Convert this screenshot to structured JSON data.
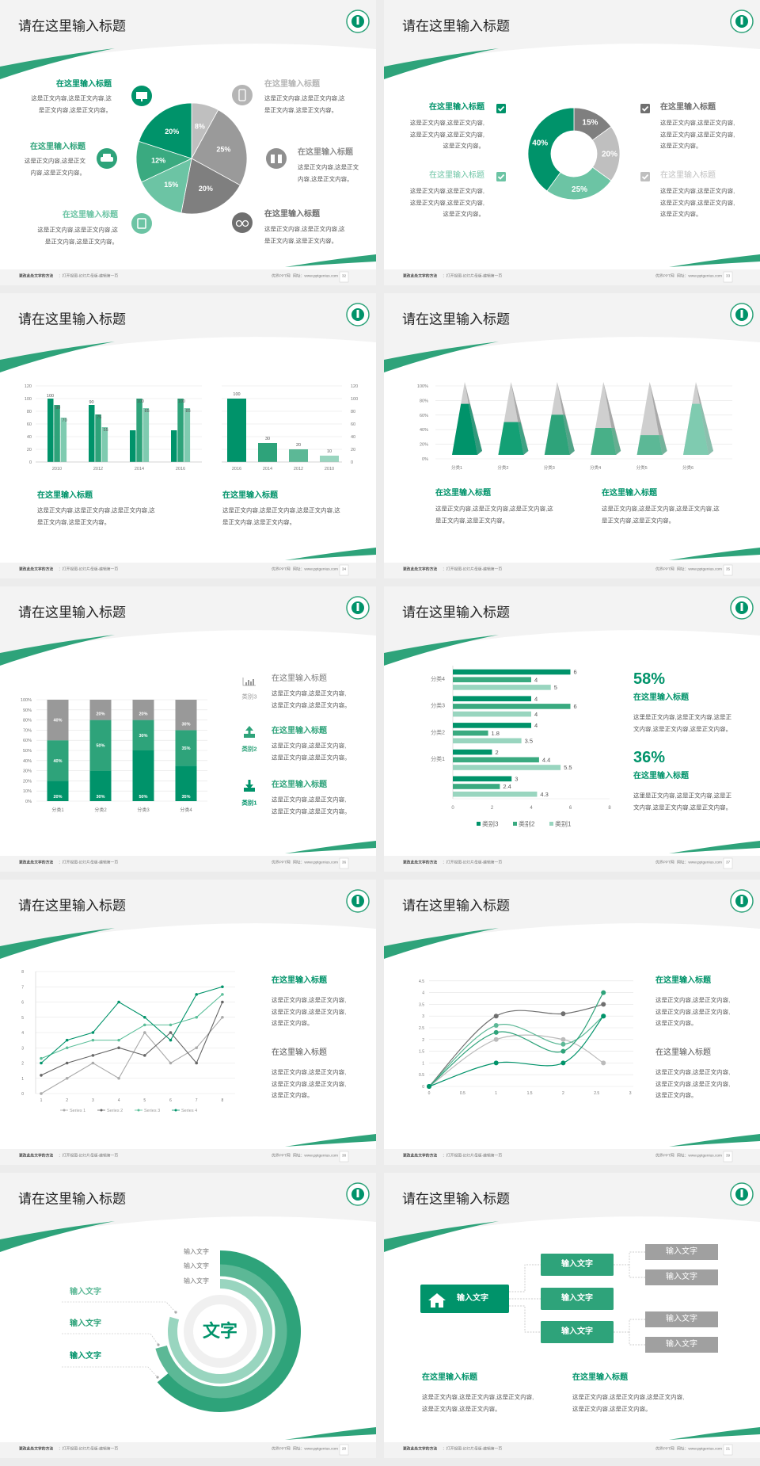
{
  "colors": {
    "green": "#00936a",
    "green2": "#2ea37a",
    "green3": "#5cb896",
    "green4": "#99d5bf",
    "gray": "#999999",
    "darkgray": "#6f6f6f",
    "lightgray": "#bfbfbf"
  },
  "footer": {
    "left_bold": "更改此处文字的方法",
    "left": "：打开视图-幻灯片母版-编辑第一页",
    "brand": "优界PPT网",
    "site": "网址：www.pptgenius.com"
  },
  "slides": [
    {
      "title": "请在这里输入标题",
      "page": "32",
      "items": [
        {
          "title": "在这里输入标题",
          "body": [
            "这是正文内容,这是正文内容,这",
            "是正文内容,这是正文内容。"
          ],
          "icon": "monitor-icon",
          "color": "#00936a"
        },
        {
          "title": "在这里输入标题",
          "body": [
            "这是正文内容,这是正文",
            "内容,这是正文内容。"
          ],
          "icon": "car-icon",
          "color": "#2ea37a"
        },
        {
          "title": "在这里输入标题",
          "body": [
            "这是正文内容,这是正文内容,这",
            "是正文内容,这是正文内容。"
          ],
          "icon": "book-icon",
          "color": "#6cc4a4"
        },
        {
          "title": "在这里输入标题",
          "body": [
            "这是正文内容,这是正文内容,这",
            "是正文内容,这是正文内容。"
          ],
          "icon": "phone-icon",
          "color": "#b5b5b5"
        },
        {
          "title": "在这里输入标题",
          "body": [
            "这是正文内容,这是正文",
            "内容,这是正文内容。"
          ],
          "icon": "binoculars-icon",
          "color": "#8f8f8f"
        },
        {
          "title": "在这里输入标题",
          "body": [
            "这是正文内容,这是正文内容,这",
            "是正文内容,这是正文内容。"
          ],
          "icon": "bicycle-icon",
          "color": "#6f6f6f"
        }
      ]
    },
    {
      "title": "请在这里输入标题",
      "page": "33",
      "items": [
        {
          "title": "在这里输入标题",
          "body": [
            "这是正文内容,这是正文内容,",
            "这是正文内容,这是正文内容,",
            "这是正文内容。"
          ],
          "color": "#00936a"
        },
        {
          "title": "在这里输入标题",
          "body": [
            "这是正文内容,这是正文内容,",
            "这是正文内容,这是正文内容,",
            "这是正文内容。"
          ],
          "color": "#6cc4a4"
        },
        {
          "title": "在这里输入标题",
          "body": [
            "这是正文内容,这是正文内容,",
            "这是正文内容,这是正文内容,",
            "这是正文内容。"
          ],
          "color": "#6f6f6f"
        },
        {
          "title": "在这里输入标题",
          "body": [
            "这是正文内容,这是正文内容,",
            "这是正文内容,这是正文内容,",
            "这是正文内容。"
          ],
          "color": "#bfbfbf"
        }
      ]
    },
    {
      "title": "请在这里输入标题",
      "page": "34",
      "items": [
        {
          "title": "在这里输入标题",
          "body": [
            "这是正文内容,这是正文内容,这是正文内容,这",
            "是正文内容,这是正文内容。"
          ]
        },
        {
          "title": "在这里输入标题",
          "body": [
            "这是正文内容,这是正文内容,这是正文内容,这",
            "是正文内容,这是正文内容。"
          ]
        }
      ]
    },
    {
      "title": "请在这里输入标题",
      "page": "35",
      "items": [
        {
          "title": "在这里输入标题",
          "body": [
            "这是正文内容,这是正文内容,这是正文内容,这",
            "是正文内容,这是正文内容。"
          ]
        },
        {
          "title": "在这里输入标题",
          "body": [
            "这是正文内容,这是正文内容,这是正文内容,这",
            "是正文内容,这是正文内容。"
          ]
        }
      ]
    },
    {
      "title": "请在这里输入标题",
      "page": "36",
      "items": [
        {
          "title": "在这里输入标题",
          "label": "类别3",
          "icon": "bar-chart-icon",
          "color": "#999999",
          "body": [
            "这是正文内容,这是正文内容,",
            "这是正文内容,这是正文内容。"
          ]
        },
        {
          "title": "在这里输入标题",
          "label": "类别2",
          "icon": "upload-icon",
          "color": "#2ea37a",
          "body": [
            "这是正文内容,这是正文内容,",
            "这是正文内容,这是正文内容。"
          ]
        },
        {
          "title": "在这里输入标题",
          "label": "类别1",
          "icon": "download-icon",
          "color": "#00936a",
          "body": [
            "这是正文内容,这是正文内容,",
            "这是正文内容,这是正文内容。"
          ]
        }
      ]
    },
    {
      "title": "请在这里输入标题",
      "page": "37",
      "items": [
        {
          "value": "58%",
          "title": "在这里输入标题",
          "body": [
            "这里是正文内容,这是正文内容,这是正",
            "文内容,这是正文内容,这是正文内容。"
          ]
        },
        {
          "value": "36%",
          "title": "在这里输入标题",
          "body": [
            "这里是正文内容,这是正文内容,这是正",
            "文内容,这是正文内容,这是正文内容。"
          ]
        }
      ]
    },
    {
      "title": "请在这里输入标题",
      "page": "38",
      "items": [
        {
          "title": "在这里输入标题",
          "color": "#00936a",
          "body": [
            "这是正文内容,这是正文内容,",
            "这是正文内容,这是正文内容,",
            "这是正文内容。"
          ]
        },
        {
          "title": "在这里输入标题",
          "color": "#555555",
          "body": [
            "这是正文内容,这是正文内容,",
            "这是正文内容,这是正文内容,",
            "这是正文内容。"
          ]
        }
      ]
    },
    {
      "title": "请在这里输入标题",
      "page": "39",
      "items": [
        {
          "title": "在这里输入标题",
          "color": "#00936a",
          "body": [
            "这是正文内容,这是正文内容,",
            "这是正文内容,这是正文内容,",
            "这是正文内容。"
          ]
        },
        {
          "title": "在这里输入标题",
          "color": "#555555",
          "body": [
            "这是正文内容,这是正文内容,",
            "这是正文内容,这是正文内容,",
            "这是正文内容。"
          ]
        }
      ]
    },
    {
      "title": "请在这里输入标题",
      "page": "20",
      "center": "文字",
      "ring_labels": [
        "输入文字",
        "输入文字",
        "输入文字"
      ],
      "left_labels": [
        {
          "text": "输入文字",
          "color": "#5cb896"
        },
        {
          "text": "输入文字",
          "color": "#2ea37a"
        },
        {
          "text": "输入文字",
          "color": "#00936a"
        }
      ],
      "rings": [
        {
          "color": "#2ea37a"
        },
        {
          "color": "#5cb896"
        },
        {
          "color": "#99d5bf"
        }
      ]
    },
    {
      "title": "请在这里输入标题",
      "page": "21",
      "root": {
        "text": "输入文字",
        "icon": "home-icon"
      },
      "branches": [
        {
          "text": "输入文字",
          "leaves": [
            "输入文字",
            "输入文字"
          ]
        },
        {
          "text": "输入文字",
          "leaves": []
        },
        {
          "text": "输入文字",
          "leaves": [
            "输入文字",
            "输入文字"
          ]
        }
      ],
      "items": [
        {
          "title": "在这里输入标题",
          "body": [
            "这是正文内容,这是正文内容,这是正文内容,",
            "这是正文内容,这是正文内容。"
          ]
        },
        {
          "title": "在这里输入标题",
          "body": [
            "这是正文内容,这是正文内容,这是正文内容,",
            "这是正文内容,这是正文内容。"
          ]
        }
      ]
    }
  ],
  "chart_data": [
    {
      "type": "pie",
      "labels": [
        "8%",
        "25%",
        "20%",
        "15%",
        "12%",
        "20%"
      ],
      "values": [
        8,
        25,
        20,
        15,
        12,
        20
      ],
      "colors": [
        "#bfbfbf",
        "#9a9a9a",
        "#7f7f7f",
        "#6cc4a4",
        "#3aaa80",
        "#00936a"
      ]
    },
    {
      "type": "pie",
      "donut": true,
      "labels": [
        "15%",
        "20%",
        "25%",
        "40%"
      ],
      "values": [
        15,
        20,
        25,
        40
      ],
      "colors": [
        "#7f7f7f",
        "#bfbfbf",
        "#6cc4a4",
        "#00936a"
      ]
    },
    {
      "type": "bar",
      "categories": [
        "2010",
        "2012",
        "2014",
        "2016"
      ],
      "ylim": [
        0,
        120
      ],
      "yticks": [
        "0",
        "20",
        "40",
        "60",
        "80",
        "100",
        "120"
      ],
      "grid": true,
      "series": [
        {
          "values": [
            100,
            90,
            50,
            50
          ],
          "labels": [
            "100",
            "90",
            null,
            null
          ],
          "color": "#00936a"
        },
        {
          "values": [
            90,
            75,
            100,
            100
          ],
          "labels": [
            "90",
            "75",
            "100",
            "100"
          ],
          "color": "#2ea37a"
        },
        {
          "values": [
            70,
            55,
            85,
            85
          ],
          "labels": [
            "70",
            "55",
            "85",
            "85"
          ],
          "color": "#7fcbb0"
        }
      ]
    },
    {
      "type": "bar",
      "categories": [
        "2016",
        "2014",
        "2012",
        "2010"
      ],
      "values": [
        100,
        30,
        20,
        10
      ],
      "labels": [
        "100",
        "30",
        "20",
        "10"
      ],
      "colors": [
        "#00936a",
        "#2ea37a",
        "#5cb896",
        "#99d5bf"
      ],
      "ylim": [
        0,
        120
      ],
      "yticks": [
        "0",
        "20",
        "40",
        "60",
        "80",
        "100",
        "120"
      ],
      "yaxis": "right",
      "grid": true
    },
    {
      "type": "bar",
      "style": "3d-pyramid",
      "categories": [
        "分类1",
        "分类2",
        "分类3",
        "分类4",
        "分类5",
        "分类6"
      ],
      "values": [
        70,
        45,
        55,
        37,
        27,
        70
      ],
      "ylim": [
        0,
        100
      ],
      "yticks": [
        "0%",
        "20%",
        "40%",
        "60%",
        "80%",
        "100%"
      ],
      "colors": [
        "#00936a",
        "#14a075",
        "#2ea37a",
        "#48b088",
        "#5cb896",
        "#7fcbb0"
      ],
      "grid": true
    },
    {
      "type": "bar",
      "stacked": true,
      "categories": [
        "分类1",
        "分类2",
        "分类3",
        "分类4"
      ],
      "ylim": [
        0,
        100
      ],
      "yticks": [
        "0%",
        "10%",
        "20%",
        "30%",
        "40%",
        "50%",
        "60%",
        "70%",
        "80%",
        "90%",
        "100%"
      ],
      "grid": true,
      "series": [
        {
          "values": [
            20,
            30,
            50,
            35
          ],
          "labels": [
            "20%",
            "30%",
            "50%",
            "35%"
          ],
          "color": "#00936a"
        },
        {
          "values": [
            40,
            50,
            30,
            35
          ],
          "labels": [
            "40%",
            "50%",
            "30%",
            "35%"
          ],
          "color": "#2ea37a"
        },
        {
          "values": [
            40,
            20,
            20,
            30
          ],
          "labels": [
            "40%",
            "20%",
            "20%",
            "30%"
          ],
          "color": "#999999"
        }
      ]
    },
    {
      "type": "bar",
      "orientation": "horizontal",
      "categories": [
        "分类4",
        "分类3",
        "分类2",
        "分类1",
        ""
      ],
      "xlim": [
        0,
        8
      ],
      "xticks": [
        "0",
        "2",
        "4",
        "6",
        "8"
      ],
      "legend": "bottom",
      "series": [
        {
          "name": "类别3",
          "values": [
            6,
            4,
            4,
            2,
            3
          ],
          "labels": [
            "6",
            "4",
            "4",
            "2",
            "3"
          ],
          "color": "#00936a"
        },
        {
          "name": "类别2",
          "values": [
            4,
            6,
            1.8,
            4.4,
            2.4
          ],
          "labels": [
            "4",
            "6",
            "1.8",
            "4.4",
            "2.4"
          ],
          "color": "#3aaa80"
        },
        {
          "name": "类别1",
          "values": [
            5,
            4,
            3.5,
            5.5,
            4.3
          ],
          "labels": [
            "5",
            "4",
            "3.5",
            "5.5",
            "4.3"
          ],
          "color": "#99d5bf"
        }
      ]
    },
    {
      "type": "line",
      "x": [
        1,
        2,
        3,
        4,
        5,
        6,
        7,
        8
      ],
      "xticks": [
        "1",
        "2",
        "3",
        "4",
        "5",
        "6",
        "7",
        "8"
      ],
      "ylim": [
        0,
        8
      ],
      "yticks": [
        "0",
        "1",
        "2",
        "3",
        "4",
        "5",
        "6",
        "7",
        "8"
      ],
      "grid": true,
      "legend": "bottom",
      "series": [
        {
          "name": "Series 1",
          "values": [
            0,
            1,
            2,
            1,
            4,
            2,
            3,
            5
          ],
          "color": "#aaaaaa"
        },
        {
          "name": "Series 2",
          "values": [
            1.2,
            2,
            2.5,
            3,
            2.5,
            4,
            2,
            6
          ],
          "color": "#666666"
        },
        {
          "name": "Series 3",
          "values": [
            2.3,
            3,
            3.5,
            3.5,
            4.5,
            4.5,
            5,
            6.5
          ],
          "color": "#5cbf9a"
        },
        {
          "name": "Series 4",
          "values": [
            2,
            3.5,
            4,
            6,
            5,
            3.5,
            6.5,
            7
          ],
          "color": "#00936a"
        }
      ]
    },
    {
      "type": "scatter",
      "smooth": true,
      "x": [
        0,
        1,
        2,
        2.6
      ],
      "xlim": [
        0,
        3
      ],
      "xticks": [
        "0",
        "0.5",
        "1",
        "1.5",
        "2",
        "2.5",
        "3"
      ],
      "ylim": [
        0,
        4.5
      ],
      "yticks": [
        "0",
        "0.5",
        "1",
        "1.5",
        "2",
        "2.5",
        "3",
        "3.5",
        "4",
        "4.5"
      ],
      "grid": true,
      "series": [
        {
          "values": [
            0,
            3,
            3.1,
            3.5
          ],
          "color": "#6f6f6f"
        },
        {
          "values": [
            0,
            2,
            2,
            1
          ],
          "color": "#bbbbbb"
        },
        {
          "values": [
            0,
            2.6,
            1.8,
            3
          ],
          "color": "#5cb896"
        },
        {
          "values": [
            0,
            2.3,
            1.5,
            4
          ],
          "color": "#2ea37a"
        },
        {
          "values": [
            0,
            1,
            1,
            3
          ],
          "color": "#00936a"
        }
      ]
    }
  ]
}
